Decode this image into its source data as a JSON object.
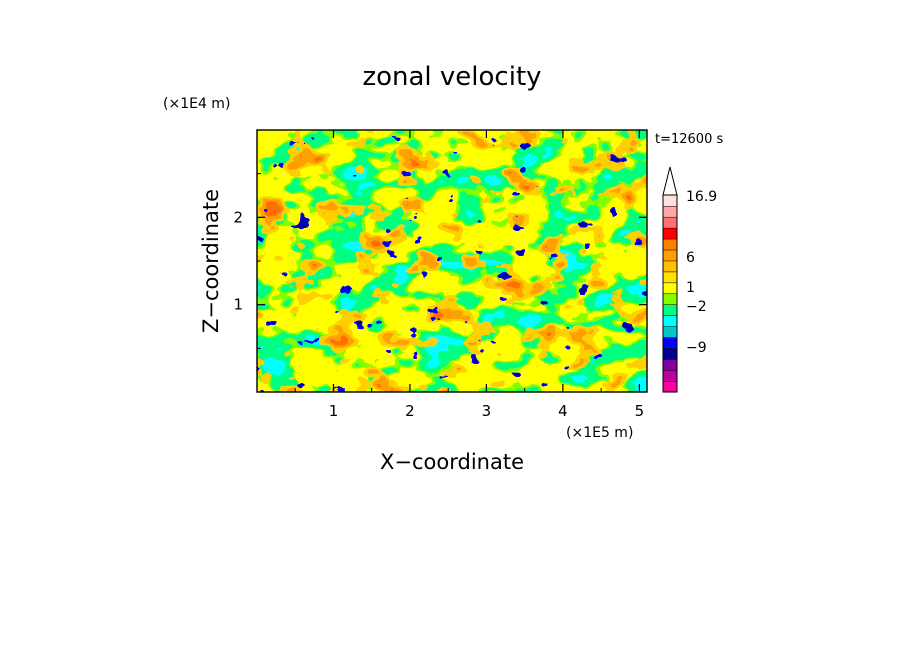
{
  "chart_data": {
    "type": "heatmap",
    "title": "zonal velocity",
    "xlabel": "X−coordinate",
    "ylabel": "Z−coordinate",
    "x_unit": "(×1E5 m)",
    "y_unit": "(×1E4 m)",
    "time_label": "t=12600 s",
    "xlim": [
      0,
      5.1
    ],
    "ylim": [
      0,
      3.0
    ],
    "x_ticks": [
      {
        "value": 1,
        "label": "1"
      },
      {
        "value": 2,
        "label": "2"
      },
      {
        "value": 3,
        "label": "3"
      },
      {
        "value": 4,
        "label": "4"
      },
      {
        "value": 5,
        "label": "5"
      }
    ],
    "y_ticks": [
      {
        "value": 1,
        "label": "1"
      },
      {
        "value": 2,
        "label": "2"
      }
    ],
    "grid": false,
    "colorbar": {
      "labels": [
        {
          "value": 16.9,
          "label": "16.9"
        },
        {
          "value": 6,
          "label": "6"
        },
        {
          "value": 1,
          "label": "1"
        },
        {
          "value": -2,
          "label": "−2"
        },
        {
          "value": -9,
          "label": "−9"
        }
      ],
      "colors": [
        "#ff00a0",
        "#c000a0",
        "#8000a0",
        "#00008c",
        "#0000ff",
        "#00c8c8",
        "#00ffff",
        "#00ff80",
        "#80ff00",
        "#ffff00",
        "#ffe000",
        "#ffc000",
        "#ffa000",
        "#ff8000",
        "#ff0000",
        "#ff7070",
        "#ffa8a8",
        "#ffe0e0"
      ]
    },
    "field_palette": {
      "blue": "#0000ff",
      "navy": "#0000a0",
      "cyan": "#00ffff",
      "green": "#00ff80",
      "lightgreen": "#80ff00",
      "yellow": "#ffff00",
      "gold": "#ffd000",
      "orange": "#ffa000",
      "darkorange": "#ff7000"
    }
  }
}
